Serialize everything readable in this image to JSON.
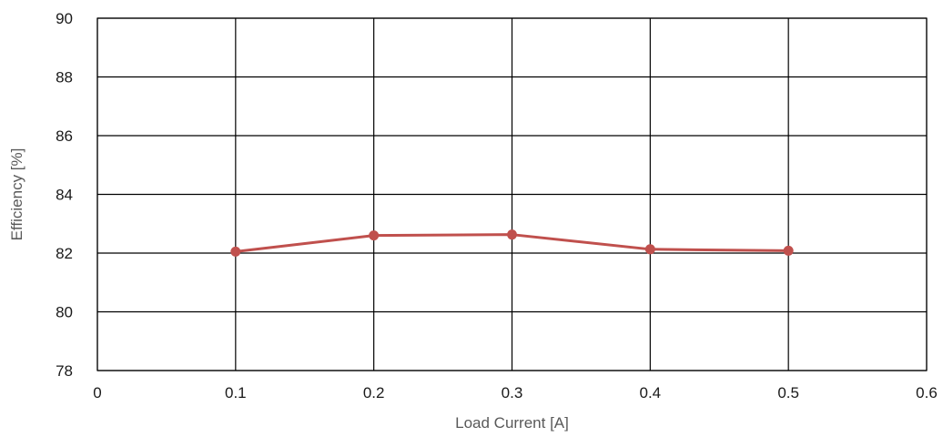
{
  "chart_data": {
    "type": "line",
    "title": "",
    "xlabel": "Load Current [A]",
    "ylabel": "Efficiency [%]",
    "xlim": [
      0,
      0.6
    ],
    "ylim": [
      78,
      90
    ],
    "xticks": [
      0,
      0.1,
      0.2,
      0.3,
      0.4,
      0.5,
      0.6
    ],
    "xtick_labels": [
      "0",
      "0.1",
      "0.2",
      "0.3",
      "0.4",
      "0.5",
      "0.6"
    ],
    "yticks": [
      78,
      80,
      82,
      84,
      86,
      88,
      90
    ],
    "ytick_labels": [
      "78",
      "80",
      "82",
      "84",
      "86",
      "88",
      "90"
    ],
    "grid": true,
    "legend": "none",
    "series": [
      {
        "color": "#c0504d",
        "x": [
          0.1,
          0.2,
          0.3,
          0.4,
          0.5
        ],
        "y": [
          82.05,
          82.6,
          82.63,
          82.13,
          82.08
        ]
      }
    ]
  }
}
